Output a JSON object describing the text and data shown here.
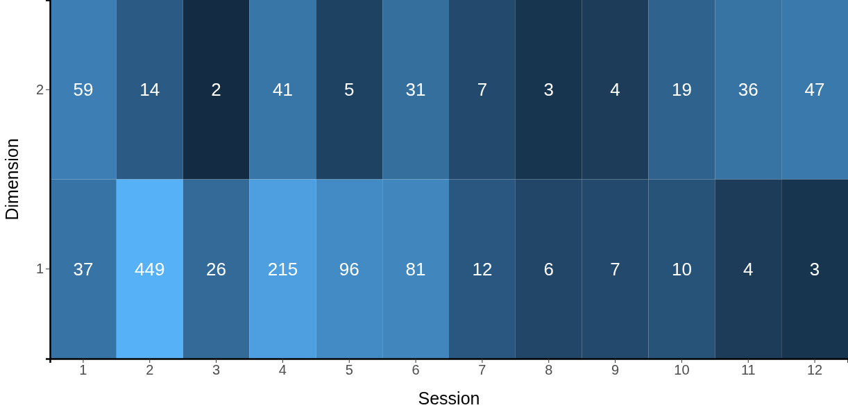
{
  "chart_data": {
    "type": "heatmap",
    "xlabel": "Session",
    "ylabel": "Dimension",
    "categories": [
      "1",
      "2",
      "3",
      "4",
      "5",
      "6",
      "7",
      "8",
      "9",
      "10",
      "11",
      "12"
    ],
    "y_categories": [
      "2",
      "1"
    ],
    "cells": [
      [
        59,
        14,
        2,
        41,
        5,
        31,
        7,
        3,
        4,
        19,
        36,
        47
      ],
      [
        37,
        449,
        26,
        215,
        96,
        81,
        12,
        6,
        7,
        10,
        4,
        3
      ]
    ],
    "data_labels": true
  }
}
